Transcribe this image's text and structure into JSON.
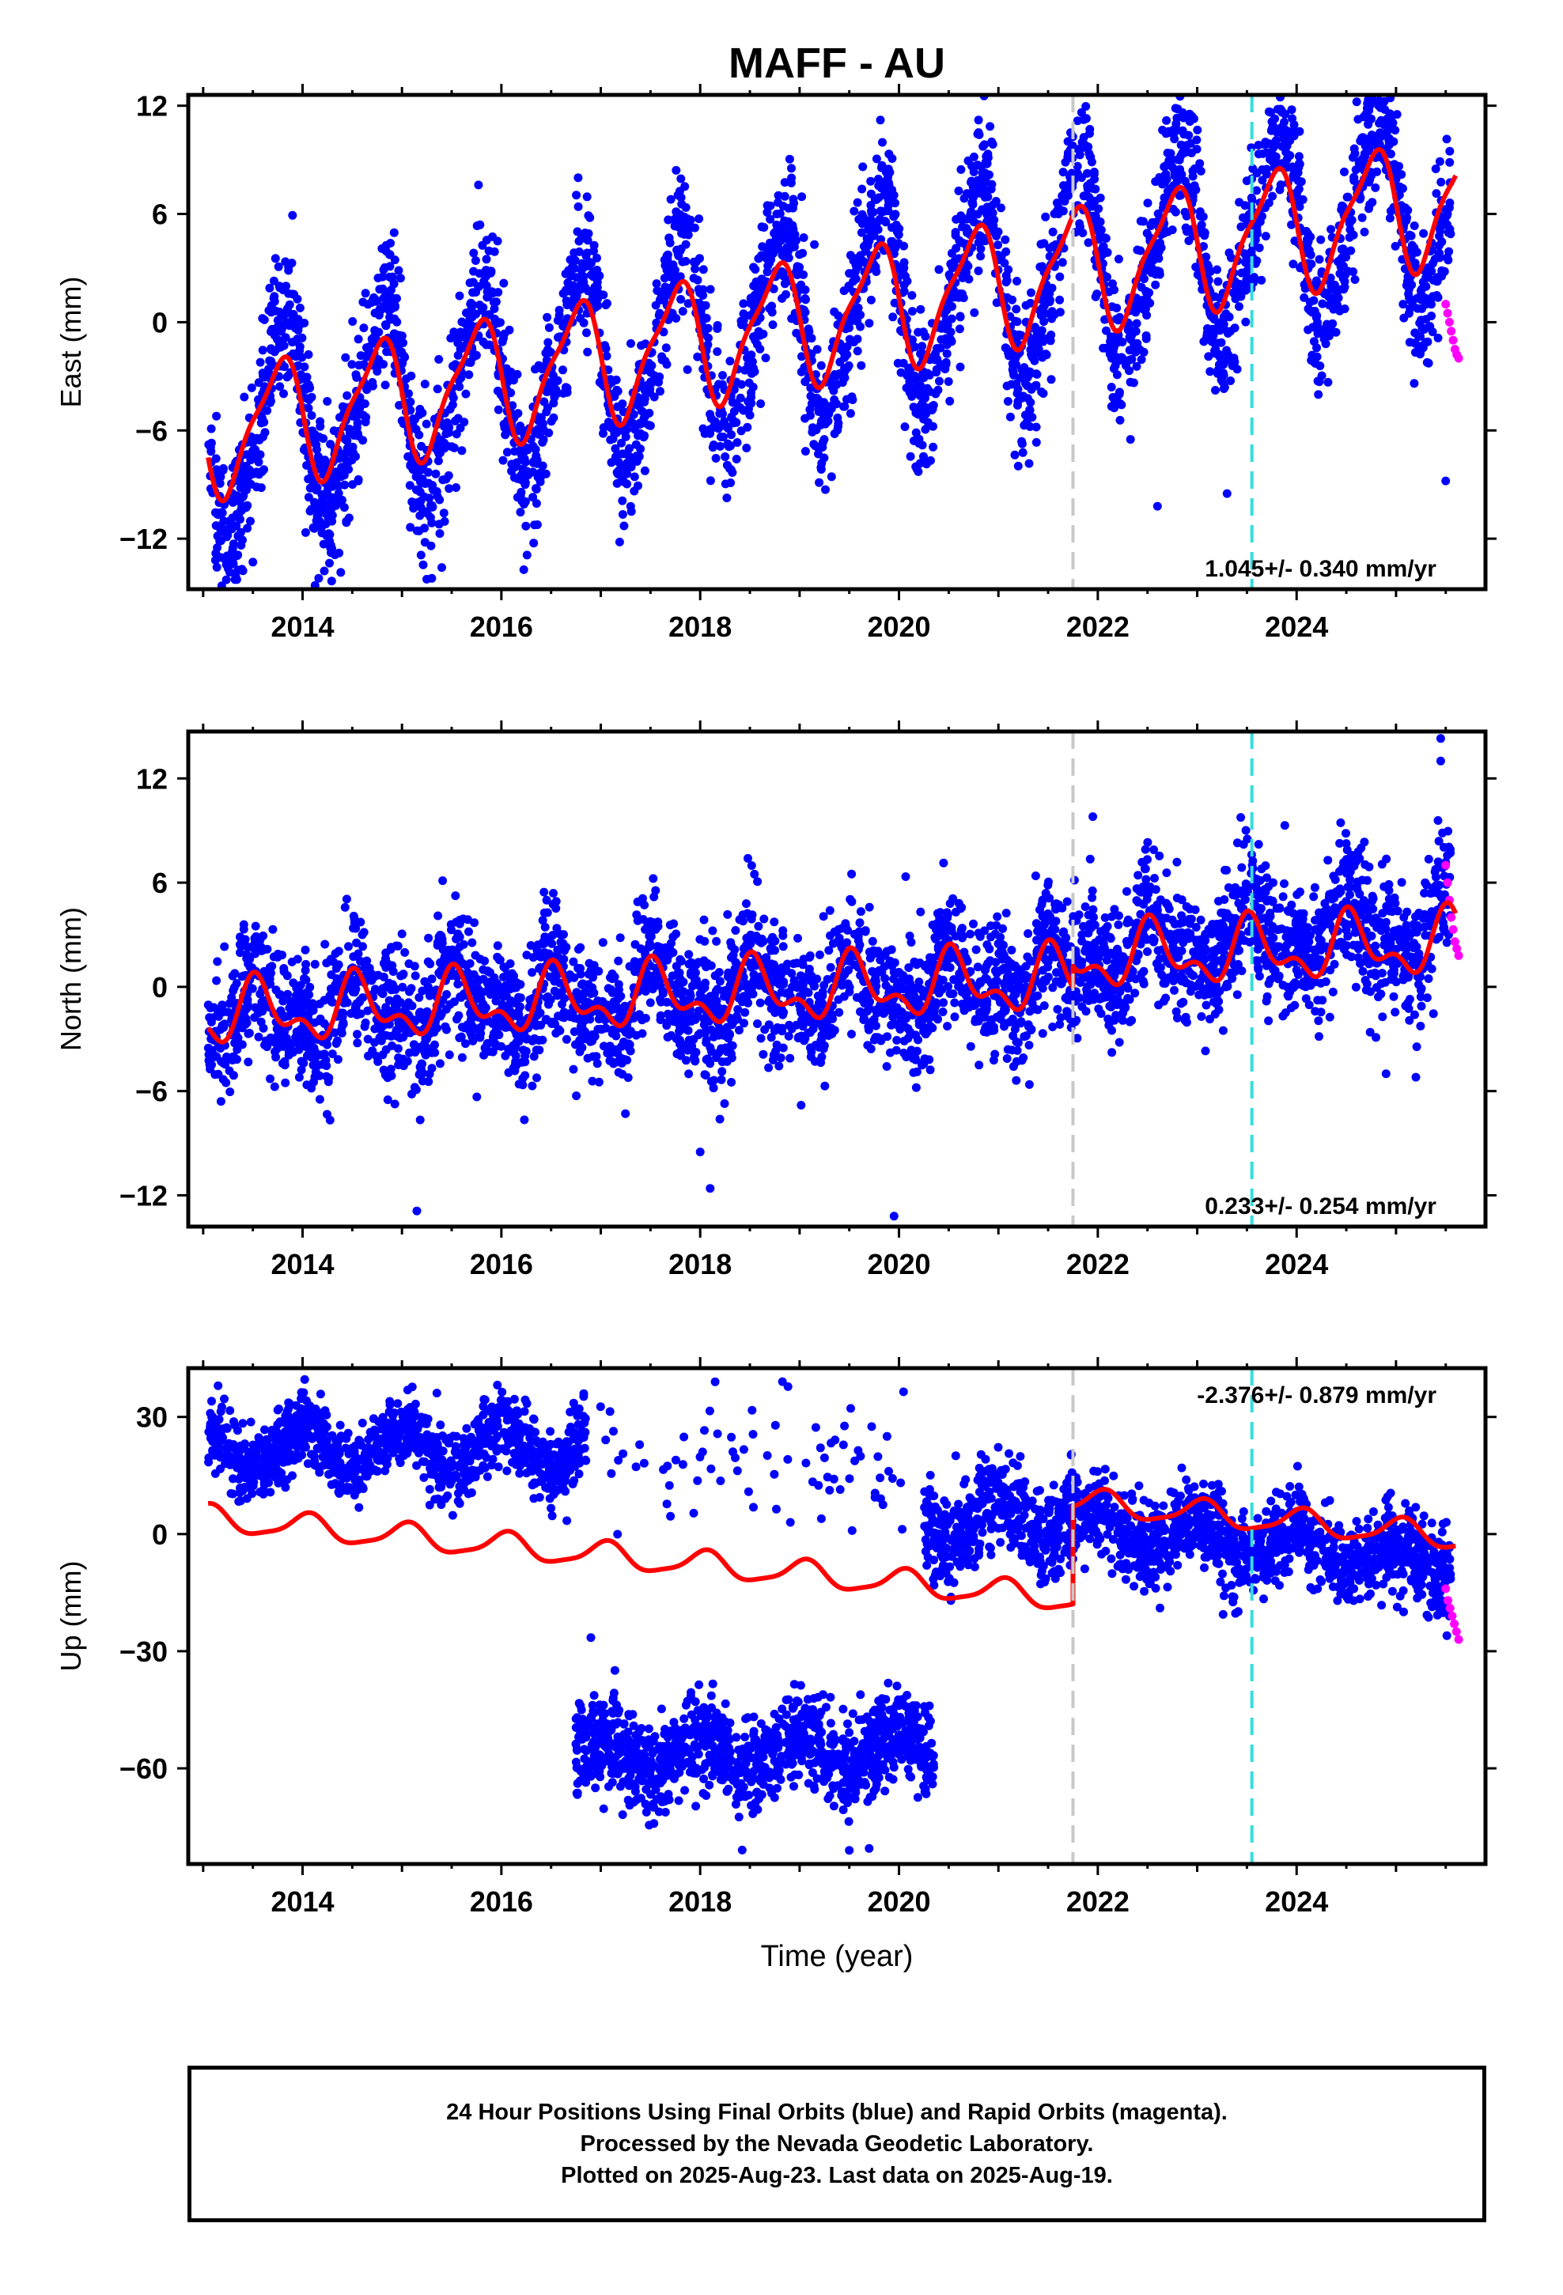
{
  "title": "MAFF - AU",
  "xlabel": "Time (year)",
  "caption": [
    "24 Hour Positions Using Final Orbits (blue) and Rapid Orbits (magenta).",
    "Processed by the Nevada Geodetic Laboratory.",
    "Plotted on 2025-Aug-23. Last data on 2025-Aug-19."
  ],
  "colors": {
    "final_orbits": "#0000ff",
    "rapid_orbits": "#ff00ff",
    "model_fit": "#ff0000",
    "equipment_change": "#c8c8c8",
    "earthquake": "#33dddd",
    "frame": "#000000"
  },
  "chart_data": [
    {
      "type": "scatter",
      "panel": "east",
      "ylabel": "East (mm)",
      "rate": "1.045+/- 0.340 mm/yr",
      "xlim": [
        2012.85,
        2025.9
      ],
      "ylim": [
        -14.8,
        12.6
      ],
      "xticks": [
        2014,
        2016,
        2018,
        2020,
        2022,
        2024
      ],
      "yticks": [
        -12,
        -6,
        0,
        6,
        12
      ],
      "vlines": [
        {
          "x": 2021.75,
          "kind": "equipment_change"
        },
        {
          "x": 2023.55,
          "kind": "earthquake"
        }
      ],
      "trend": {
        "slope": 1.045,
        "t0": 2013.05,
        "v0": -6.2,
        "annual_amp": 3.3,
        "annual_peak": 2014.75,
        "semi_amp": 0.9,
        "semi_peak": 2014.9
      },
      "noise_sd": 2.0,
      "points_per_year": 300,
      "data_span": [
        2013.05,
        2025.55
      ],
      "rapid": {
        "span": [
          2025.5,
          2025.63
        ],
        "values": [
          1.0,
          0.5,
          0.0,
          -0.5,
          -1.0,
          -1.5,
          -1.8,
          -2.0
        ]
      },
      "outliers": [
        [
          2015.3,
          -14.2
        ],
        [
          2015.4,
          -13.6
        ],
        [
          2023.3,
          -9.5
        ],
        [
          2025.5,
          -8.8
        ],
        [
          2022.6,
          -10.2
        ],
        [
          2023.7,
          9.4
        ],
        [
          2025.4,
          8.5
        ],
        [
          2013.5,
          -13.3
        ]
      ]
    },
    {
      "type": "scatter",
      "panel": "north",
      "ylabel": "North (mm)",
      "rate": "0.233+/- 0.254 mm/yr",
      "xlim": [
        2012.85,
        2025.9
      ],
      "ylim": [
        -13.8,
        14.7
      ],
      "xticks": [
        2014,
        2016,
        2018,
        2020,
        2022,
        2024
      ],
      "yticks": [
        -12,
        -6,
        0,
        6,
        12
      ],
      "vlines": [
        {
          "x": 2021.75,
          "kind": "equipment_change"
        },
        {
          "x": 2023.55,
          "kind": "earthquake"
        }
      ],
      "trend": {
        "slope": 0.233,
        "t0": 2013.05,
        "v0": -1.6,
        "annual_amp": 1.5,
        "annual_peak": 2014.55,
        "semi_amp": 0.9,
        "semi_peak": 2014.5
      },
      "offset_after": {
        "x": 2021.75,
        "delta": 1.2
      },
      "late_increase": 0.55,
      "noise_sd": 1.9,
      "points_per_year": 300,
      "data_span": [
        2013.05,
        2025.55
      ],
      "rapid": {
        "span": [
          2025.5,
          2025.63
        ],
        "values": [
          7.0,
          6.0,
          5.0,
          4.0,
          3.3,
          2.6,
          2.2,
          1.8
        ]
      },
      "outliers": [
        [
          2015.15,
          -12.9
        ],
        [
          2019.95,
          -13.2
        ],
        [
          2018.0,
          -9.5
        ],
        [
          2018.1,
          -11.6
        ],
        [
          2021.95,
          9.8
        ],
        [
          2025.45,
          14.3
        ],
        [
          2025.45,
          13.0
        ],
        [
          2024.9,
          -5.0
        ],
        [
          2025.2,
          -5.2
        ]
      ]
    },
    {
      "type": "scatter",
      "panel": "up",
      "ylabel": "Up (mm)",
      "rate": "-2.376+/- 0.879 mm/yr",
      "xlim": [
        2012.85,
        2025.9
      ],
      "ylim": [
        -84.5,
        42.5
      ],
      "xticks": [
        2014,
        2016,
        2018,
        2020,
        2022,
        2024
      ],
      "yticks": [
        -60,
        -30,
        0,
        30
      ],
      "vlines": [
        {
          "x": 2021.75,
          "kind": "equipment_change"
        },
        {
          "x": 2023.55,
          "kind": "earthquake"
        }
      ],
      "trend": {
        "slope": -2.376,
        "t0": 2013.05,
        "v0": 4.0,
        "annual_amp": 3.2,
        "annual_peak": 2014.05,
        "semi_amp": 0.8,
        "semi_peak": 2014.1
      },
      "offset_after": {
        "x": 2021.75,
        "delta": 25.0
      },
      "clusters": [
        {
          "span": [
            2013.05,
            2016.85
          ],
          "base": 22.0,
          "annual_amp": 5.0,
          "sd": 4.5,
          "ppy": 300
        },
        {
          "span": [
            2016.75,
            2020.35
          ],
          "base": -56.0,
          "annual_amp": 4.0,
          "sd": 6.0,
          "ppy": 310
        },
        {
          "span": [
            2016.9,
            2020.05
          ],
          "base": 18.0,
          "annual_amp": 2.0,
          "sd": 9.0,
          "ppy": 25
        },
        {
          "span": [
            2020.25,
            2021.75
          ],
          "base": 4.0,
          "annual_amp": 5.0,
          "sd": 6.5,
          "ppy": 300
        },
        {
          "span": [
            2021.75,
            2025.55
          ],
          "base": 2.0,
          "slope": -2.4,
          "annual_amp": 4.0,
          "sd": 5.5,
          "ppy": 300
        }
      ],
      "rapid": {
        "span": [
          2025.5,
          2025.63
        ],
        "values": [
          -14.0,
          -17.0,
          -19.0,
          -21.0,
          -23.0,
          -25.0,
          -27.0
        ]
      },
      "outliers": [
        [
          2016.9,
          -26.5
        ],
        [
          2018.15,
          39.0
        ],
        [
          2019.5,
          -81.0
        ],
        [
          2019.7,
          -80.5
        ],
        [
          2013.15,
          38.0
        ]
      ]
    }
  ]
}
